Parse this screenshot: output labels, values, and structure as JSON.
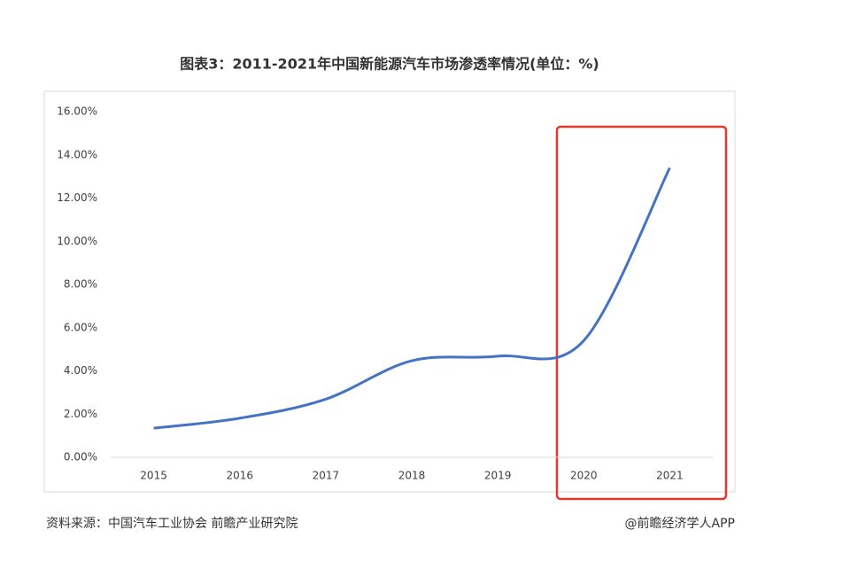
{
  "chart_data": {
    "type": "line",
    "title": "图表3：2011-2021年中国新能源汽车市场渗透率情况(单位：%)",
    "categories": [
      "2015",
      "2016",
      "2017",
      "2018",
      "2019",
      "2020",
      "2021"
    ],
    "values": [
      1.35,
      1.81,
      2.69,
      4.47,
      4.68,
      5.4,
      13.4
    ],
    "color": "#4472c4",
    "ylim": [
      0,
      16
    ],
    "yticks": [
      {
        "value": 0,
        "label": "0.00%"
      },
      {
        "value": 2,
        "label": "2.00%"
      },
      {
        "value": 4,
        "label": "4.00%"
      },
      {
        "value": 6,
        "label": "6.00%"
      },
      {
        "value": 8,
        "label": "8.00%"
      },
      {
        "value": 10,
        "label": "10.00%"
      },
      {
        "value": 12,
        "label": "12.00%"
      },
      {
        "value": 14,
        "label": "14.00%"
      },
      {
        "value": 16,
        "label": "16.00%"
      }
    ],
    "source": "资料来源：中国汽车工业协会 前瞻产业研究院",
    "credit": "@前瞻经济学人APP"
  }
}
